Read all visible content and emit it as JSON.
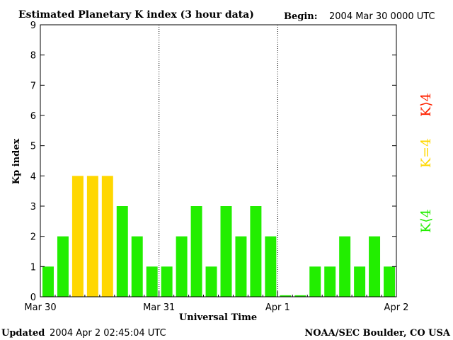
{
  "header": {
    "title": "Estimated Planetary K index (3 hour data)",
    "begin_label": "Begin:",
    "begin_value": "2004 Mar 30 0000 UTC"
  },
  "footer": {
    "updated_label": "Updated",
    "updated_value": "2004 Apr  2 02:45:04 UTC",
    "credit": "NOAA/SEC Boulder, CO USA"
  },
  "colors": {
    "low": "#22ee00",
    "mid": "#ffd700",
    "high": "#ff2200",
    "background": "#ffffff",
    "axis": "#000000"
  },
  "legend": [
    {
      "label": "K⟨4",
      "color": "#22ee00"
    },
    {
      "label": "K=4",
      "color": "#ffd700"
    },
    {
      "label": "K⟩4",
      "color": "#ff2200"
    }
  ],
  "chart_data": {
    "type": "bar",
    "title": "Estimated Planetary K index (3 hour data)",
    "xlabel": "Universal Time",
    "ylabel": "Kp index",
    "ylim": [
      0,
      9
    ],
    "yticks": [
      "0",
      "1",
      "2",
      "3",
      "4",
      "5",
      "6",
      "7",
      "8",
      "9"
    ],
    "xticks": [
      "Mar 30",
      "Mar 31",
      "Apr 1",
      "Apr 2"
    ],
    "day_dividers": [
      "Mar 31",
      "Apr 1"
    ],
    "bars_per_day": 8,
    "values": [
      1,
      2,
      4,
      4,
      4,
      3,
      2,
      1,
      1,
      2,
      3,
      1,
      3,
      2,
      3,
      2,
      0.05,
      0.05,
      1,
      1,
      2,
      1,
      2,
      1
    ]
  }
}
